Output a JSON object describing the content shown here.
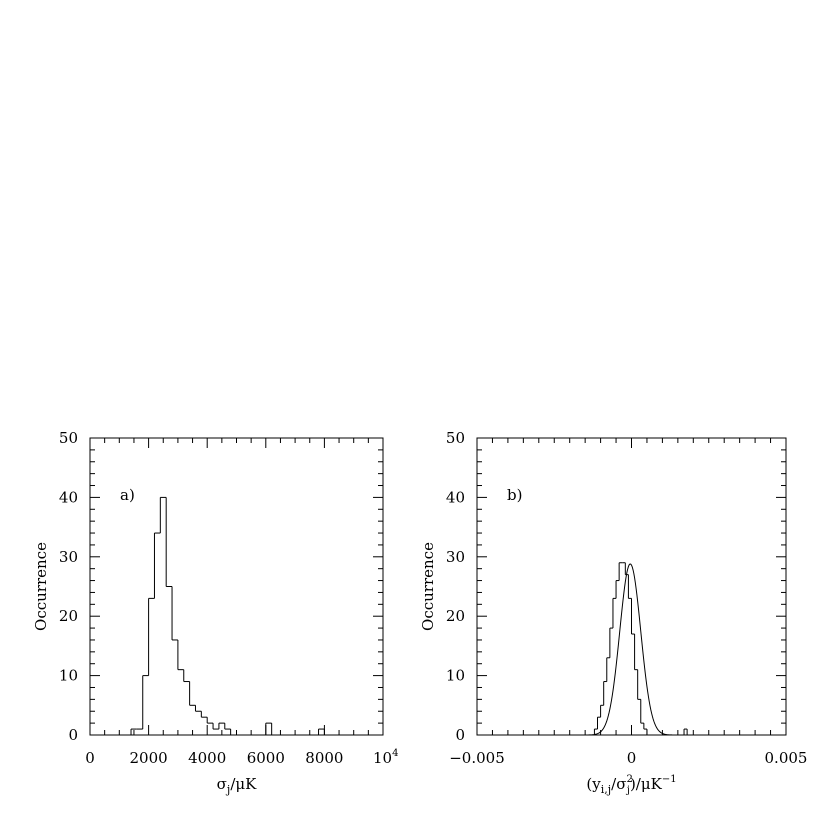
{
  "chart_data": [
    {
      "type": "bar",
      "panel_label": "a)",
      "xlabel_main": "σ",
      "xlabel_sub": "j",
      "xlabel_tail": "/μK",
      "ylabel": "Occurrence",
      "xlim": [
        0,
        10000
      ],
      "ylim": [
        0,
        50
      ],
      "x_major_ticks": [
        0,
        2000,
        4000,
        6000,
        8000
      ],
      "x_major_labels": [
        "0",
        "2000",
        "4000",
        "6000",
        "8000"
      ],
      "x_end_label_base": "10",
      "x_end_label_exp": "4",
      "x_minor_step": 500,
      "y_major_ticks": [
        0,
        10,
        20,
        30,
        40,
        50
      ],
      "y_major_labels": [
        "0",
        "10",
        "20",
        "30",
        "40",
        "50"
      ],
      "y_minor_step": 2,
      "bin_width": 200,
      "bin_start": 0,
      "values": [
        0,
        0,
        0,
        0,
        0,
        0,
        0,
        1,
        1,
        10,
        23,
        34,
        40,
        25,
        16,
        11,
        9,
        5,
        4,
        3,
        2,
        1,
        2,
        1,
        0,
        0,
        0,
        0,
        0,
        0,
        2,
        0,
        0,
        0,
        0,
        0,
        0,
        0,
        0,
        1,
        0,
        0,
        0,
        0,
        0,
        0,
        0,
        0,
        0,
        0
      ]
    },
    {
      "type": "bar",
      "panel_label": "b)",
      "xlabel_parts": [
        "(y",
        "i,j",
        "/σ",
        "2",
        "j",
        ")/μK",
        "−1"
      ],
      "ylabel": "Occurrence",
      "xlim": [
        -0.005,
        0.005
      ],
      "ylim": [
        0,
        50
      ],
      "x_major_ticks": [
        -0.005,
        0,
        0.005
      ],
      "x_major_labels": [
        "−0.005",
        "0",
        "0.005"
      ],
      "x_minor_step": 0.0005,
      "y_major_ticks": [
        0,
        10,
        20,
        30,
        40,
        50
      ],
      "y_major_labels": [
        "0",
        "10",
        "20",
        "30",
        "40",
        "50"
      ],
      "y_minor_step": 2,
      "bin_width": 0.0001,
      "bin_start": -0.0012,
      "values": [
        1,
        3,
        5,
        9,
        13,
        18,
        23,
        26,
        29,
        29,
        27,
        23,
        17,
        11,
        6,
        2,
        1,
        0,
        0,
        0,
        0,
        0,
        0,
        0,
        0,
        0,
        0,
        0,
        0,
        1,
        0
      ],
      "fit": {
        "type": "gaussian",
        "amplitude": 28.8,
        "mean": -4e-05,
        "sigma": 0.00034
      }
    }
  ]
}
